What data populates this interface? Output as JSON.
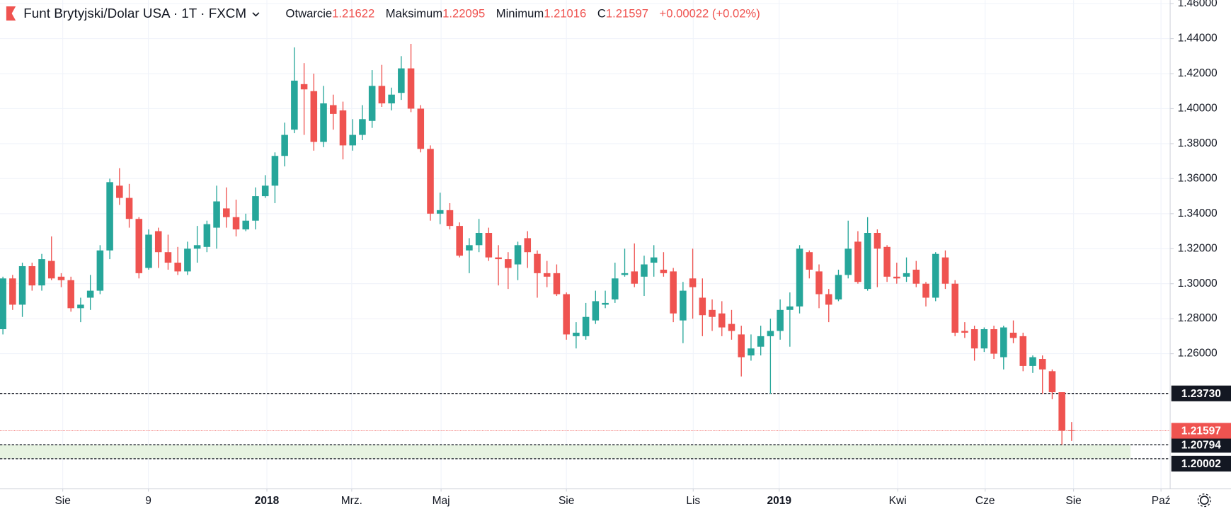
{
  "chart_data": {
    "type": "candlestick",
    "title": "Funt Brytyjski/Dolar USA · 1T · FXCM",
    "open_label": "Otwarcie",
    "high_label": "Maksimum",
    "low_label": "Minimum",
    "close_label": "C",
    "change": "+0.00022 (+0.02%)",
    "up_color": "#26a69a",
    "down_color": "#ef5350",
    "grid": true,
    "ylim": [
      1.183,
      1.462
    ],
    "yticks": [
      {
        "value": 1.46,
        "label": "1.46000"
      },
      {
        "value": 1.44,
        "label": "1.44000"
      },
      {
        "value": 1.42,
        "label": "1.42000"
      },
      {
        "value": 1.4,
        "label": "1.40000"
      },
      {
        "value": 1.38,
        "label": "1.38000"
      },
      {
        "value": 1.36,
        "label": "1.36000"
      },
      {
        "value": 1.34,
        "label": "1.34000"
      },
      {
        "value": 1.32,
        "label": "1.32000"
      },
      {
        "value": 1.3,
        "label": "1.30000"
      },
      {
        "value": 1.28,
        "label": "1.28000"
      },
      {
        "value": 1.26,
        "label": "1.26000"
      }
    ],
    "xlim": [
      -0.3,
      120.1
    ],
    "xticks": [
      {
        "value": 6.16,
        "label": "Sie"
      },
      {
        "value": 14.97,
        "label": "9"
      },
      {
        "value": 27.17,
        "label": "2018"
      },
      {
        "value": 35.9,
        "label": "Mrz."
      },
      {
        "value": 45.1,
        "label": "Maj"
      },
      {
        "value": 58.0,
        "label": "Sie"
      },
      {
        "value": 71.05,
        "label": "Lis"
      },
      {
        "value": 79.9,
        "label": "2019"
      },
      {
        "value": 92.1,
        "label": "Kwi"
      },
      {
        "value": 101.1,
        "label": "Cze"
      },
      {
        "value": 110.2,
        "label": "Sie"
      },
      {
        "value": 119.2,
        "label": "Paź"
      }
    ],
    "levels": [
      {
        "value": 1.2373,
        "label": "1.23730"
      },
      {
        "value": 1.20794,
        "label": "1.20794"
      },
      {
        "value": 1.20002,
        "label": "1.20002"
      }
    ],
    "open": [
      1.274,
      1.303,
      1.288,
      1.31,
      1.299,
      1.313,
      1.304,
      1.302,
      1.286,
      1.292,
      1.296,
      1.319,
      1.356,
      1.349,
      1.337,
      1.309,
      1.33,
      1.318,
      1.312,
      1.307,
      1.32,
      1.321,
      1.332,
      1.343,
      1.338,
      1.331,
      1.336,
      1.35,
      1.356,
      1.373,
      1.388,
      1.414,
      1.41,
      1.381,
      1.402,
      1.399,
      1.379,
      1.385,
      1.393,
      1.413,
      1.403,
      1.409,
      1.423,
      1.4,
      1.377,
      1.34,
      1.342,
      1.333,
      1.319,
      1.322,
      1.329,
      1.315,
      1.314,
      1.311,
      1.326,
      1.317,
      1.306,
      1.306,
      1.294,
      1.27,
      1.27,
      1.279,
      1.288,
      1.291,
      1.305,
      1.307,
      1.304,
      1.312,
      1.308,
      1.307,
      1.279,
      1.303,
      1.292,
      1.285,
      1.283,
      1.277,
      1.271,
      1.259,
      1.264,
      1.27,
      1.273,
      1.285,
      1.287,
      1.318,
      1.307,
      1.294,
      1.291,
      1.305,
      1.324,
      1.297,
      1.329,
      1.321,
      1.304,
      1.304,
      1.308,
      1.3,
      1.292,
      1.315,
      1.3,
      1.273,
      1.274,
      1.263,
      1.274,
      1.258,
      1.272,
      1.27,
      1.253,
      1.257,
      1.25,
      1.238,
      1.21622
    ],
    "high": [
      1.304,
      1.305,
      1.312,
      1.312,
      1.317,
      1.327,
      1.306,
      1.304,
      1.292,
      1.305,
      1.322,
      1.36,
      1.366,
      1.357,
      1.338,
      1.331,
      1.332,
      1.328,
      1.321,
      1.324,
      1.333,
      1.336,
      1.356,
      1.355,
      1.348,
      1.34,
      1.355,
      1.362,
      1.375,
      1.392,
      1.435,
      1.426,
      1.42,
      1.413,
      1.408,
      1.404,
      1.394,
      1.402,
      1.422,
      1.425,
      1.412,
      1.43,
      1.437,
      1.402,
      1.379,
      1.352,
      1.346,
      1.335,
      1.326,
      1.337,
      1.332,
      1.322,
      1.318,
      1.324,
      1.33,
      1.319,
      1.313,
      1.311,
      1.295,
      1.278,
      1.289,
      1.296,
      1.296,
      1.312,
      1.32,
      1.323,
      1.316,
      1.322,
      1.318,
      1.309,
      1.301,
      1.32,
      1.303,
      1.291,
      1.29,
      1.285,
      1.276,
      1.271,
      1.276,
      1.28,
      1.291,
      1.295,
      1.322,
      1.319,
      1.311,
      1.297,
      1.308,
      1.336,
      1.33,
      1.338,
      1.331,
      1.322,
      1.312,
      1.315,
      1.313,
      1.301,
      1.318,
      1.319,
      1.302,
      1.278,
      1.276,
      1.275,
      1.276,
      1.276,
      1.279,
      1.272,
      1.259,
      1.259,
      1.251,
      1.238,
      1.22095
    ],
    "low": [
      1.271,
      1.285,
      1.281,
      1.296,
      1.296,
      1.302,
      1.298,
      1.284,
      1.278,
      1.285,
      1.294,
      1.314,
      1.345,
      1.332,
      1.303,
      1.308,
      1.309,
      1.308,
      1.305,
      1.305,
      1.312,
      1.318,
      1.32,
      1.332,
      1.327,
      1.33,
      1.331,
      1.349,
      1.346,
      1.367,
      1.386,
      1.385,
      1.376,
      1.378,
      1.388,
      1.371,
      1.376,
      1.382,
      1.389,
      1.401,
      1.399,
      1.405,
      1.398,
      1.375,
      1.336,
      1.334,
      1.331,
      1.315,
      1.306,
      1.318,
      1.313,
      1.299,
      1.297,
      1.302,
      1.309,
      1.292,
      1.298,
      1.293,
      1.268,
      1.263,
      1.268,
      1.277,
      1.286,
      1.289,
      1.304,
      1.298,
      1.293,
      1.304,
      1.304,
      1.278,
      1.266,
      1.28,
      1.27,
      1.273,
      1.27,
      1.268,
      1.247,
      1.256,
      1.259,
      1.237,
      1.268,
      1.264,
      1.283,
      1.303,
      1.286,
      1.278,
      1.29,
      1.303,
      1.3,
      1.296,
      1.298,
      1.301,
      1.3,
      1.301,
      1.298,
      1.287,
      1.29,
      1.297,
      1.27,
      1.269,
      1.256,
      1.261,
      1.257,
      1.251,
      1.266,
      1.25,
      1.249,
      1.237,
      1.234,
      1.208,
      1.21016
    ],
    "close": [
      1.303,
      1.288,
      1.31,
      1.299,
      1.314,
      1.303,
      1.302,
      1.286,
      1.288,
      1.296,
      1.319,
      1.358,
      1.349,
      1.337,
      1.306,
      1.328,
      1.318,
      1.312,
      1.307,
      1.32,
      1.322,
      1.334,
      1.347,
      1.338,
      1.331,
      1.336,
      1.35,
      1.356,
      1.373,
      1.385,
      1.416,
      1.411,
      1.381,
      1.403,
      1.397,
      1.379,
      1.385,
      1.394,
      1.413,
      1.403,
      1.408,
      1.423,
      1.4,
      1.377,
      1.34,
      1.342,
      1.333,
      1.316,
      1.322,
      1.329,
      1.315,
      1.314,
      1.309,
      1.322,
      1.318,
      1.306,
      1.304,
      1.294,
      1.271,
      1.272,
      1.281,
      1.29,
      1.289,
      1.303,
      1.306,
      1.3,
      1.311,
      1.315,
      1.306,
      1.283,
      1.296,
      1.298,
      1.282,
      1.281,
      1.275,
      1.273,
      1.258,
      1.263,
      1.27,
      1.273,
      1.285,
      1.287,
      1.32,
      1.308,
      1.294,
      1.288,
      1.305,
      1.32,
      1.301,
      1.329,
      1.32,
      1.304,
      1.303,
      1.306,
      1.3,
      1.292,
      1.317,
      1.3,
      1.272,
      1.272,
      1.263,
      1.274,
      1.26,
      1.275,
      1.269,
      1.253,
      1.258,
      1.251,
      1.238,
      1.216,
      1.21597
    ]
  }
}
